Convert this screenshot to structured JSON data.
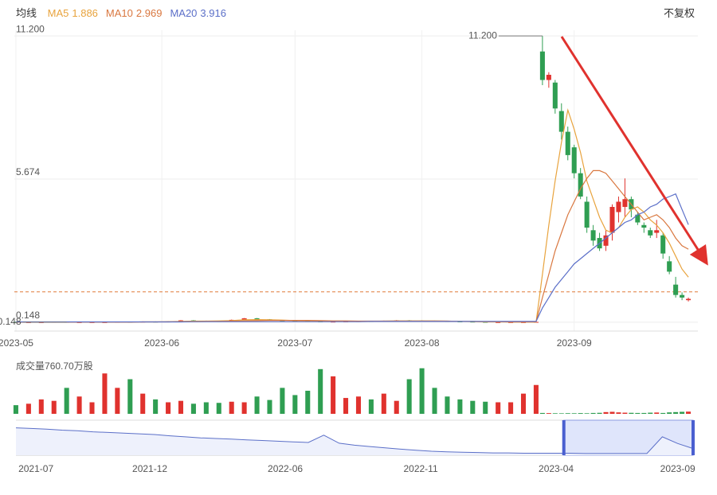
{
  "header": {
    "label": "均线",
    "toggle": "不复权"
  },
  "chart_data": [
    {
      "type": "candlestick",
      "x": [
        0,
        2,
        4,
        6,
        8,
        10,
        12,
        14,
        16,
        18,
        20,
        22,
        24,
        26,
        28,
        30,
        32,
        34,
        36,
        38,
        40,
        42,
        44,
        46,
        48,
        50,
        52,
        54,
        56,
        58,
        60,
        62,
        64,
        66,
        68,
        70,
        72,
        74,
        76,
        78,
        80,
        82,
        83,
        84,
        85,
        86,
        87,
        88,
        89,
        90,
        91,
        92,
        93,
        94,
        95,
        96,
        97,
        98,
        99,
        100,
        101,
        102,
        103,
        104,
        105,
        106
      ],
      "open": [
        0.16,
        0.15,
        0.15,
        0.15,
        0.16,
        0.15,
        0.15,
        0.15,
        0.15,
        0.16,
        0.15,
        0.17,
        0.16,
        0.18,
        0.22,
        0.2,
        0.19,
        0.18,
        0.24,
        0.3,
        0.26,
        0.22,
        0.2,
        0.19,
        0.18,
        0.17,
        0.17,
        0.18,
        0.19,
        0.18,
        0.2,
        0.22,
        0.21,
        0.2,
        0.19,
        0.18,
        0.17,
        0.16,
        0.15,
        0.15,
        0.15,
        0.15,
        10.6,
        9.5,
        9.4,
        8.3,
        7.5,
        6.9,
        5.9,
        4.8,
        3.7,
        3.4,
        3.1,
        3.6,
        4.4,
        4.6,
        4.9,
        4.3,
        3.9,
        3.7,
        3.6,
        3.5,
        2.5,
        1.6,
        1.2,
        1.0
      ],
      "high": [
        0.17,
        0.16,
        0.16,
        0.17,
        0.17,
        0.16,
        0.16,
        0.16,
        0.17,
        0.17,
        0.18,
        0.18,
        0.19,
        0.23,
        0.23,
        0.21,
        0.2,
        0.25,
        0.31,
        0.31,
        0.27,
        0.23,
        0.21,
        0.2,
        0.19,
        0.18,
        0.19,
        0.2,
        0.2,
        0.21,
        0.23,
        0.23,
        0.22,
        0.21,
        0.2,
        0.19,
        0.18,
        0.17,
        0.16,
        0.16,
        0.16,
        0.17,
        11.2,
        9.8,
        9.5,
        8.6,
        7.7,
        7.0,
        6.1,
        5.0,
        3.9,
        3.6,
        3.7,
        4.7,
        5.0,
        5.7,
        5.0,
        4.4,
        4.0,
        3.8,
        4.1,
        3.6,
        2.7,
        1.9,
        1.3,
        1.1
      ],
      "low": [
        0.15,
        0.15,
        0.15,
        0.15,
        0.148,
        0.15,
        0.15,
        0.15,
        0.15,
        0.15,
        0.15,
        0.16,
        0.16,
        0.18,
        0.2,
        0.19,
        0.18,
        0.18,
        0.24,
        0.26,
        0.22,
        0.2,
        0.19,
        0.18,
        0.17,
        0.17,
        0.17,
        0.18,
        0.18,
        0.18,
        0.2,
        0.21,
        0.2,
        0.19,
        0.18,
        0.17,
        0.16,
        0.15,
        0.15,
        0.15,
        0.15,
        0.15,
        9.3,
        9.2,
        8.2,
        7.2,
        6.4,
        5.7,
        4.9,
        3.6,
        3.1,
        2.9,
        2.9,
        3.3,
        4.0,
        4.2,
        4.2,
        3.9,
        3.6,
        3.4,
        3.4,
        2.6,
        2.0,
        1.1,
        1.0,
        0.95
      ],
      "close": [
        0.15,
        0.15,
        0.15,
        0.16,
        0.15,
        0.15,
        0.15,
        0.15,
        0.16,
        0.15,
        0.17,
        0.16,
        0.18,
        0.22,
        0.2,
        0.19,
        0.18,
        0.24,
        0.3,
        0.26,
        0.22,
        0.2,
        0.19,
        0.18,
        0.17,
        0.17,
        0.18,
        0.19,
        0.18,
        0.2,
        0.22,
        0.21,
        0.2,
        0.19,
        0.18,
        0.17,
        0.16,
        0.15,
        0.15,
        0.15,
        0.15,
        0.16,
        9.5,
        9.7,
        8.4,
        7.5,
        6.6,
        5.9,
        5.0,
        3.8,
        3.3,
        3.0,
        3.5,
        4.6,
        4.8,
        4.9,
        4.5,
        4.0,
        3.8,
        3.5,
        3.7,
        2.8,
        2.1,
        1.2,
        1.1,
        1.05
      ],
      "up_color": "#e0322e",
      "down_color": "#2f9e52",
      "series": [
        {
          "name": "MA5",
          "color": "#e8a33d",
          "values": [
            0.15,
            0.15,
            0.15,
            0.15,
            0.15,
            0.15,
            0.15,
            0.15,
            0.15,
            0.15,
            0.16,
            0.16,
            0.17,
            0.18,
            0.19,
            0.19,
            0.2,
            0.21,
            0.24,
            0.25,
            0.24,
            0.23,
            0.21,
            0.2,
            0.19,
            0.18,
            0.18,
            0.18,
            0.18,
            0.19,
            0.2,
            0.2,
            0.2,
            0.2,
            0.19,
            0.18,
            0.17,
            0.16,
            0.16,
            0.15,
            0.15,
            0.15,
            2.0,
            3.9,
            5.6,
            7.1,
            8.34,
            7.6,
            6.7,
            5.6,
            4.9,
            4.2,
            3.7,
            3.6,
            3.8,
            4.2,
            4.5,
            4.6,
            4.4,
            4.1,
            3.9,
            3.6,
            3.2,
            2.7,
            2.2,
            1.886
          ]
        },
        {
          "name": "MA10",
          "color": "#d9773f",
          "values": [
            0.15,
            0.15,
            0.15,
            0.15,
            0.15,
            0.15,
            0.15,
            0.15,
            0.15,
            0.15,
            0.16,
            0.16,
            0.16,
            0.17,
            0.17,
            0.18,
            0.18,
            0.19,
            0.2,
            0.21,
            0.22,
            0.22,
            0.22,
            0.22,
            0.21,
            0.2,
            0.2,
            0.19,
            0.19,
            0.19,
            0.19,
            0.19,
            0.19,
            0.19,
            0.19,
            0.18,
            0.18,
            0.17,
            0.17,
            0.16,
            0.16,
            0.16,
            1.1,
            2.0,
            2.9,
            3.6,
            4.3,
            4.8,
            5.3,
            5.7,
            6.0,
            6.0,
            5.9,
            5.6,
            5.3,
            5.0,
            4.7,
            4.4,
            4.1,
            4.2,
            4.3,
            4.1,
            3.8,
            3.4,
            3.1,
            2.969
          ]
        },
        {
          "name": "MA20",
          "color": "#5b6fc8",
          "values": [
            0.16,
            0.16,
            0.16,
            0.16,
            0.16,
            0.16,
            0.16,
            0.16,
            0.16,
            0.16,
            0.16,
            0.16,
            0.16,
            0.16,
            0.17,
            0.17,
            0.17,
            0.17,
            0.17,
            0.17,
            0.17,
            0.17,
            0.17,
            0.17,
            0.17,
            0.17,
            0.17,
            0.17,
            0.18,
            0.18,
            0.18,
            0.18,
            0.18,
            0.18,
            0.18,
            0.18,
            0.18,
            0.18,
            0.18,
            0.18,
            0.18,
            0.18,
            0.7,
            1.1,
            1.5,
            1.8,
            2.1,
            2.4,
            2.6,
            2.8,
            3.0,
            3.2,
            3.4,
            3.6,
            3.8,
            4.0,
            4.1,
            4.3,
            4.4,
            4.6,
            4.7,
            4.9,
            5.0,
            5.1,
            4.5,
            3.916
          ]
        }
      ],
      "xlim": [
        -1.5,
        107.5
      ],
      "ylim": [
        -0.07,
        11.42
      ],
      "yticks": [
        0.148,
        5.674,
        {
          "value": 11.2,
          "label": "11.200"
        }
      ],
      "xticks": [
        {
          "value": 0,
          "label": "2023-05"
        },
        {
          "value": 23,
          "label": "2023-06"
        },
        {
          "value": 44,
          "label": "2023-07"
        },
        {
          "value": 64,
          "label": "2023-08"
        },
        {
          "value": 88,
          "label": "2023-09"
        }
      ],
      "grid": true,
      "ref_line": {
        "value": 1.32,
        "color": "#e07a3a"
      },
      "annotations": [
        {
          "x": 83,
          "value": 11.2,
          "label": "11.200"
        },
        {
          "x": 8,
          "value": 0.148,
          "label": "0.148"
        }
      ]
    },
    {
      "type": "bar",
      "title": "成交量",
      "unit": "万股",
      "values": [
        3000,
        3500,
        5000,
        4500,
        9000,
        6000,
        4000,
        14000,
        9000,
        12000,
        7000,
        5000,
        4000,
        4500,
        3500,
        4000,
        3800,
        4200,
        4000,
        6000,
        4800,
        9000,
        6500,
        8000,
        15500,
        13000,
        5500,
        6000,
        5000,
        7000,
        4500,
        12000,
        15800,
        9000,
        6000,
        5000,
        4500,
        4200,
        4000,
        4000,
        7000,
        10000,
        300,
        250,
        200,
        180,
        220,
        200,
        250,
        200,
        300,
        350,
        600,
        700,
        500,
        400,
        350,
        300,
        300,
        400,
        450,
        300,
        500,
        600,
        700,
        760.7
      ],
      "value_labels": [
        null,
        null,
        null,
        null,
        null,
        null,
        null,
        null,
        null,
        null,
        null,
        null,
        null,
        null,
        null,
        null,
        null,
        null,
        null,
        null,
        null,
        null,
        null,
        null,
        null,
        null,
        null,
        null,
        null,
        null,
        null,
        null,
        null,
        null,
        null,
        null,
        null,
        null,
        null,
        null,
        null,
        null,
        null,
        null,
        null,
        null,
        null,
        null,
        null,
        null,
        null,
        null,
        null,
        null,
        null,
        null,
        null,
        null,
        null,
        null,
        null,
        null,
        null,
        null,
        null,
        "760.70"
      ],
      "ylim": [
        0,
        16000
      ]
    },
    {
      "type": "line",
      "color": "#5b6fc8",
      "values": [
        0.82,
        0.8,
        0.78,
        0.75,
        0.73,
        0.7,
        0.68,
        0.66,
        0.64,
        0.62,
        0.58,
        0.55,
        0.52,
        0.5,
        0.48,
        0.46,
        0.44,
        0.42,
        0.4,
        0.38,
        0.6,
        0.36,
        0.3,
        0.26,
        0.22,
        0.18,
        0.15,
        0.12,
        0.1,
        0.09,
        0.08,
        0.07,
        0.07,
        0.06,
        0.06,
        0.06,
        0.06,
        0.05,
        0.05,
        0.05,
        0.05,
        0.05,
        0.55,
        0.35,
        0.2
      ],
      "xlim": [
        0,
        44
      ],
      "ylim": [
        0,
        1
      ],
      "xticks": [
        {
          "value": 1.3,
          "label": "2021-07"
        },
        {
          "value": 8.7,
          "label": "2021-12"
        },
        {
          "value": 17.5,
          "label": "2022-06"
        },
        {
          "value": 26.3,
          "label": "2022-11"
        },
        {
          "value": 35.1,
          "label": "2023-04"
        },
        {
          "value": 43,
          "label": "2023-09"
        }
      ],
      "selection": [
        35.6,
        44
      ]
    }
  ]
}
